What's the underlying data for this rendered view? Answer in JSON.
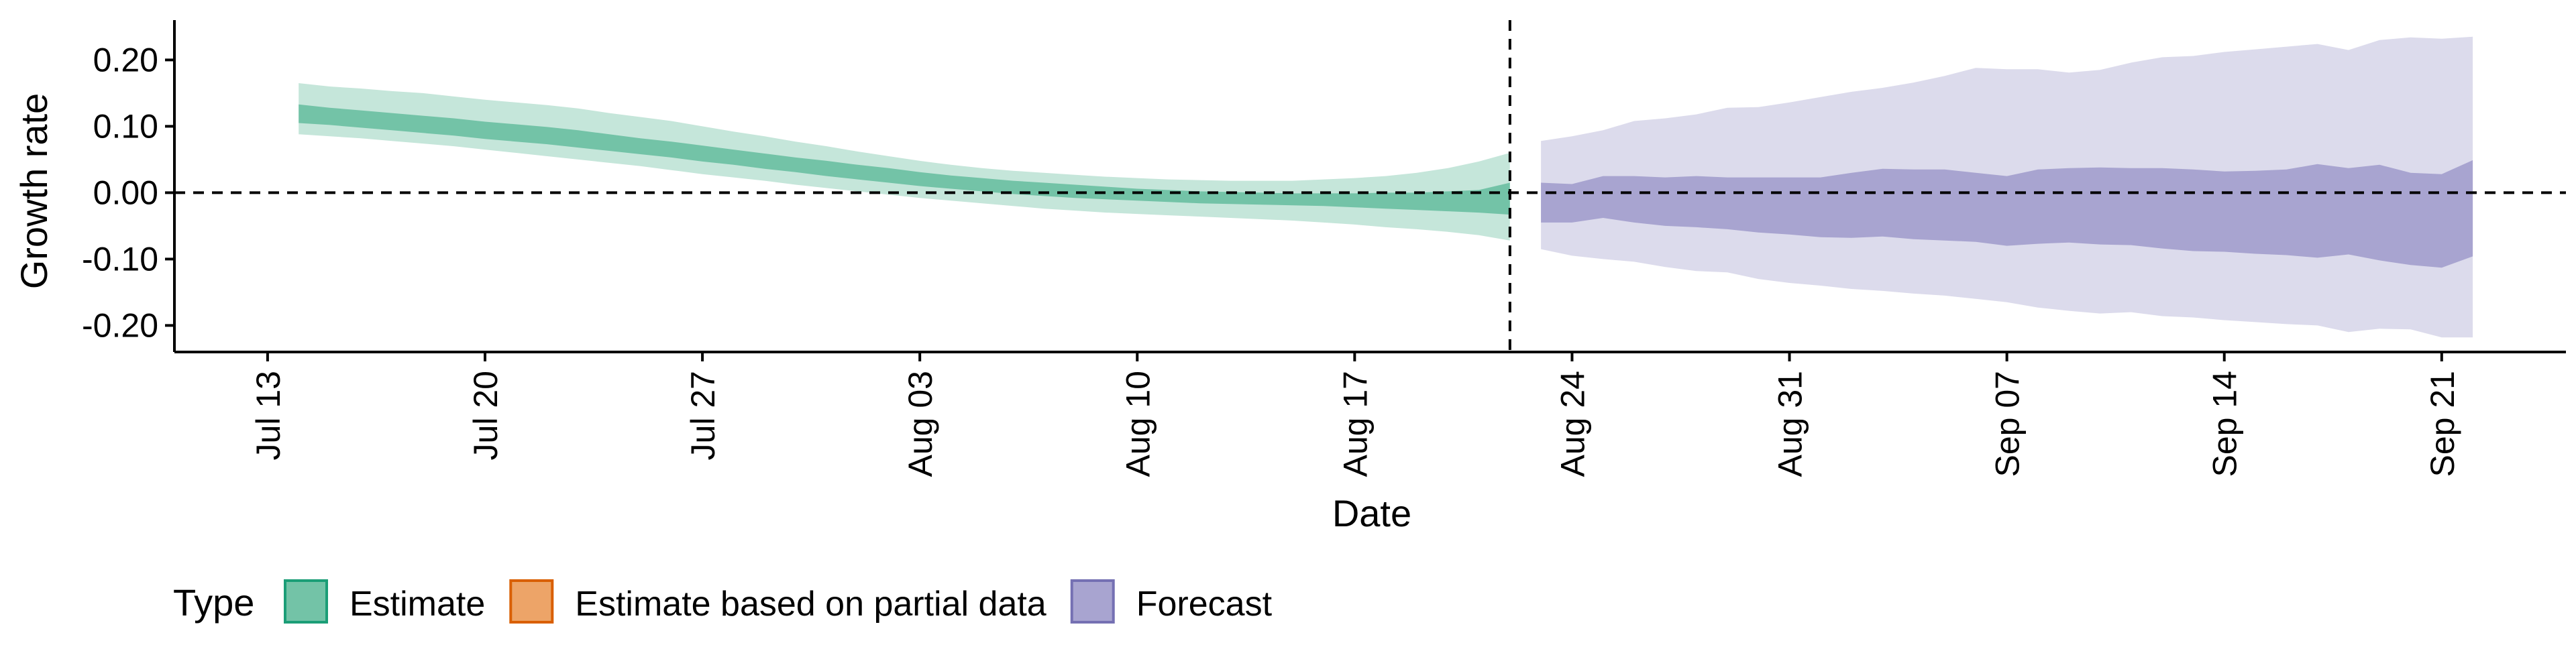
{
  "chart_data": {
    "type": "area",
    "xlabel": "Date",
    "ylabel": "Growth rate",
    "ylim": [
      -0.24,
      0.26
    ],
    "x_axis_type": "date",
    "x_range": [
      "2020-07-10",
      "2020-09-25"
    ],
    "x_ticks": [
      {
        "date": "2020-07-13",
        "label": "Jul 13"
      },
      {
        "date": "2020-07-20",
        "label": "Jul 20"
      },
      {
        "date": "2020-07-27",
        "label": "Jul 27"
      },
      {
        "date": "2020-08-03",
        "label": "Aug 03"
      },
      {
        "date": "2020-08-10",
        "label": "Aug 10"
      },
      {
        "date": "2020-08-17",
        "label": "Aug 17"
      },
      {
        "date": "2020-08-24",
        "label": "Aug 24"
      },
      {
        "date": "2020-08-31",
        "label": "Aug 31"
      },
      {
        "date": "2020-09-07",
        "label": "Sep 07"
      },
      {
        "date": "2020-09-14",
        "label": "Sep 14"
      },
      {
        "date": "2020-09-21",
        "label": "Sep 21"
      }
    ],
    "y_ticks": [
      {
        "value": 0.2,
        "label": "0.20"
      },
      {
        "value": 0.1,
        "label": "0.10"
      },
      {
        "value": 0.0,
        "label": "0.00"
      },
      {
        "value": -0.1,
        "label": "-0.10"
      },
      {
        "value": -0.2,
        "label": "-0.20"
      }
    ],
    "reference_lines": {
      "horizontal_y": 0.0,
      "vertical_date": "2020-08-22"
    },
    "grid": false,
    "legend": {
      "title": "Type",
      "position": "bottom-left",
      "entries": [
        {
          "label": "Estimate",
          "fill": "#73c3a7",
          "border": "#1b9e77"
        },
        {
          "label": "Estimate based on partial data",
          "fill": "#eda468",
          "border": "#d95f02"
        },
        {
          "label": "Forecast",
          "fill": "#a8a4d0",
          "border": "#7570b3"
        }
      ]
    },
    "series": [
      {
        "name": "Estimate",
        "color": "#1b9e77",
        "dates": [
          "2020-07-14",
          "2020-07-15",
          "2020-07-16",
          "2020-07-17",
          "2020-07-18",
          "2020-07-19",
          "2020-07-20",
          "2020-07-21",
          "2020-07-22",
          "2020-07-23",
          "2020-07-24",
          "2020-07-25",
          "2020-07-26",
          "2020-07-27",
          "2020-07-28",
          "2020-07-29",
          "2020-07-30",
          "2020-07-31",
          "2020-08-01",
          "2020-08-02",
          "2020-08-03",
          "2020-08-04",
          "2020-08-05",
          "2020-08-06",
          "2020-08-07",
          "2020-08-08",
          "2020-08-09",
          "2020-08-10",
          "2020-08-11",
          "2020-08-12",
          "2020-08-13",
          "2020-08-14",
          "2020-08-15",
          "2020-08-16",
          "2020-08-17",
          "2020-08-18",
          "2020-08-19",
          "2020-08-20",
          "2020-08-21",
          "2020-08-22"
        ],
        "outer_upper": [
          0.165,
          0.16,
          0.157,
          0.153,
          0.15,
          0.145,
          0.14,
          0.136,
          0.132,
          0.127,
          0.12,
          0.114,
          0.108,
          0.1,
          0.092,
          0.085,
          0.077,
          0.07,
          0.062,
          0.055,
          0.048,
          0.042,
          0.037,
          0.033,
          0.03,
          0.027,
          0.024,
          0.022,
          0.02,
          0.019,
          0.018,
          0.018,
          0.018,
          0.02,
          0.022,
          0.025,
          0.03,
          0.037,
          0.047,
          0.06
        ],
        "inner_upper": [
          0.133,
          0.128,
          0.124,
          0.12,
          0.116,
          0.112,
          0.107,
          0.103,
          0.099,
          0.094,
          0.088,
          0.082,
          0.077,
          0.071,
          0.065,
          0.059,
          0.053,
          0.048,
          0.042,
          0.037,
          0.031,
          0.026,
          0.022,
          0.018,
          0.015,
          0.012,
          0.009,
          0.006,
          0.004,
          0.002,
          0.001,
          0.0,
          -0.001,
          -0.001,
          -0.001,
          0.0,
          0.0,
          0.002,
          0.004,
          0.015
        ],
        "inner_lower": [
          0.105,
          0.102,
          0.098,
          0.094,
          0.09,
          0.086,
          0.081,
          0.077,
          0.073,
          0.068,
          0.063,
          0.058,
          0.053,
          0.047,
          0.042,
          0.036,
          0.031,
          0.025,
          0.02,
          0.015,
          0.01,
          0.006,
          0.002,
          -0.002,
          -0.005,
          -0.008,
          -0.01,
          -0.012,
          -0.014,
          -0.016,
          -0.017,
          -0.018,
          -0.019,
          -0.02,
          -0.022,
          -0.024,
          -0.026,
          -0.028,
          -0.03,
          -0.033
        ],
        "outer_lower": [
          0.088,
          0.085,
          0.082,
          0.078,
          0.074,
          0.07,
          0.065,
          0.06,
          0.055,
          0.05,
          0.045,
          0.04,
          0.034,
          0.028,
          0.023,
          0.018,
          0.012,
          0.007,
          0.002,
          -0.003,
          -0.008,
          -0.012,
          -0.016,
          -0.02,
          -0.024,
          -0.027,
          -0.03,
          -0.032,
          -0.034,
          -0.036,
          -0.038,
          -0.04,
          -0.042,
          -0.045,
          -0.048,
          -0.052,
          -0.055,
          -0.059,
          -0.064,
          -0.072
        ]
      },
      {
        "name": "Forecast",
        "color": "#7570b3",
        "dates": [
          "2020-08-23",
          "2020-08-24",
          "2020-08-25",
          "2020-08-26",
          "2020-08-27",
          "2020-08-28",
          "2020-08-29",
          "2020-08-30",
          "2020-08-31",
          "2020-09-01",
          "2020-09-02",
          "2020-09-03",
          "2020-09-04",
          "2020-09-05",
          "2020-09-06",
          "2020-09-07",
          "2020-09-08",
          "2020-09-09",
          "2020-09-10",
          "2020-09-11",
          "2020-09-12",
          "2020-09-13",
          "2020-09-14",
          "2020-09-15",
          "2020-09-16",
          "2020-09-17",
          "2020-09-18",
          "2020-09-19",
          "2020-09-20",
          "2020-09-21",
          "2020-09-22"
        ],
        "outer_upper": [
          0.078,
          0.085,
          0.094,
          0.108,
          0.112,
          0.118,
          0.128,
          0.129,
          0.136,
          0.144,
          0.152,
          0.158,
          0.166,
          0.176,
          0.188,
          0.186,
          0.186,
          0.181,
          0.185,
          0.196,
          0.204,
          0.206,
          0.212,
          0.216,
          0.22,
          0.224,
          0.215,
          0.23,
          0.234,
          0.232,
          0.235
        ],
        "inner_upper": [
          0.015,
          0.013,
          0.025,
          0.025,
          0.023,
          0.025,
          0.023,
          0.023,
          0.023,
          0.023,
          0.03,
          0.036,
          0.035,
          0.035,
          0.03,
          0.025,
          0.035,
          0.037,
          0.038,
          0.037,
          0.037,
          0.035,
          0.032,
          0.033,
          0.035,
          0.043,
          0.037,
          0.042,
          0.03,
          0.028,
          0.049
        ],
        "inner_lower": [
          -0.045,
          -0.045,
          -0.038,
          -0.045,
          -0.05,
          -0.052,
          -0.055,
          -0.06,
          -0.063,
          -0.067,
          -0.068,
          -0.066,
          -0.07,
          -0.072,
          -0.074,
          -0.08,
          -0.077,
          -0.075,
          -0.078,
          -0.079,
          -0.084,
          -0.088,
          -0.089,
          -0.092,
          -0.094,
          -0.098,
          -0.093,
          -0.102,
          -0.109,
          -0.113,
          -0.096
        ],
        "outer_lower": [
          -0.085,
          -0.095,
          -0.1,
          -0.104,
          -0.112,
          -0.118,
          -0.12,
          -0.13,
          -0.136,
          -0.14,
          -0.145,
          -0.148,
          -0.152,
          -0.155,
          -0.16,
          -0.165,
          -0.173,
          -0.178,
          -0.182,
          -0.18,
          -0.186,
          -0.188,
          -0.192,
          -0.195,
          -0.198,
          -0.2,
          -0.21,
          -0.205,
          -0.206,
          -0.218,
          -0.218
        ]
      }
    ]
  }
}
